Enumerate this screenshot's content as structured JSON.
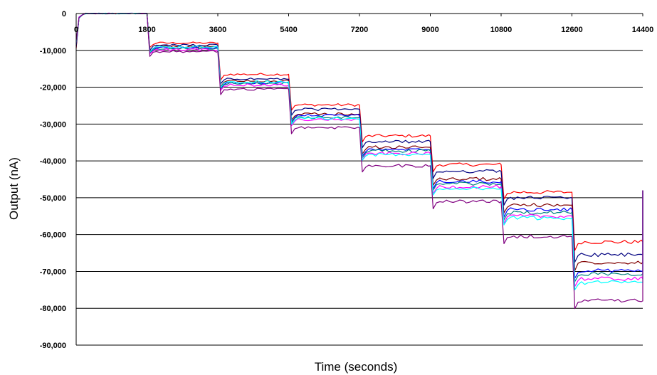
{
  "chart_data": {
    "type": "line",
    "title": "",
    "xlabel": "Time  (seconds)",
    "ylabel": "Output (nA)",
    "xlim": [
      0,
      14400
    ],
    "ylim": [
      -90000,
      0
    ],
    "x_ticks": [
      0,
      1800,
      3600,
      5400,
      7200,
      9000,
      10800,
      12600,
      14400
    ],
    "x_tick_labels": [
      "0",
      "1800",
      "3600",
      "5400",
      "7200",
      "9000",
      "10800",
      "12600",
      "14400"
    ],
    "y_ticks": [
      0,
      -10000,
      -20000,
      -30000,
      -40000,
      -50000,
      -60000,
      -70000,
      -80000,
      -90000
    ],
    "y_tick_labels": [
      "0",
      "-10,000",
      "-20,000",
      "-30,000",
      "-40,000",
      "-50,000",
      "-60,000",
      "-70,000",
      "-80,000",
      "-90,000"
    ],
    "grid": "horizontal",
    "legend": "none",
    "step_boundaries": [
      0,
      1800,
      3600,
      5400,
      7200,
      9000,
      10800,
      12600,
      14400
    ],
    "series": [
      {
        "color": "#ff0000",
        "levels": [
          0,
          -8000,
          -16500,
          -24800,
          -33200,
          -41000,
          -48500,
          -62000
        ]
      },
      {
        "color": "#000080",
        "levels": [
          0,
          -8600,
          -17800,
          -26000,
          -34800,
          -42800,
          -50000,
          -65500
        ]
      },
      {
        "color": "#800000",
        "levels": [
          0,
          -9000,
          -18300,
          -27300,
          -36300,
          -44900,
          -52000,
          -67500
        ]
      },
      {
        "color": "#0000ff",
        "levels": [
          0,
          -9300,
          -18800,
          -27700,
          -37000,
          -45600,
          -53200,
          -69800
        ]
      },
      {
        "color": "#008080",
        "levels": [
          0,
          -9500,
          -19000,
          -28200,
          -37300,
          -46200,
          -54000,
          -70600
        ]
      },
      {
        "color": "#ff00ff",
        "levels": [
          0,
          -9800,
          -19400,
          -28800,
          -38000,
          -47000,
          -55000,
          -72000
        ]
      },
      {
        "color": "#00ffff",
        "levels": [
          0,
          -9100,
          -18500,
          -28500,
          -38300,
          -47500,
          -55500,
          -73000
        ]
      },
      {
        "color": "#800080",
        "levels": [
          0,
          -10300,
          -20500,
          -31000,
          -41300,
          -51000,
          -60500,
          -78000
        ]
      }
    ]
  }
}
